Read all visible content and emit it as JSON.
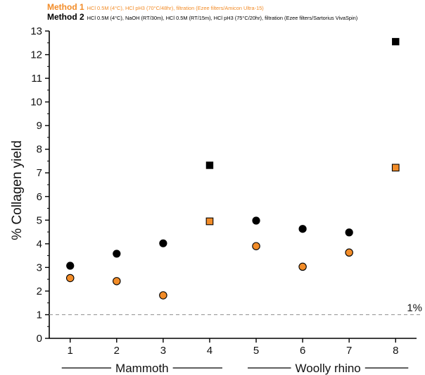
{
  "chart_data": {
    "type": "scatter",
    "ylabel": "% Collagen yield",
    "xlabel": "",
    "x": [
      1,
      2,
      3,
      4,
      5,
      6,
      7,
      8
    ],
    "x_ticks": [
      "1",
      "2",
      "3",
      "4",
      "5",
      "6",
      "7",
      "8"
    ],
    "xlim": [
      0.55,
      8.45
    ],
    "ylim": [
      0,
      13
    ],
    "y_ticks": [
      "0",
      "1",
      "2",
      "3",
      "4",
      "5",
      "6",
      "7",
      "8",
      "9",
      "10",
      "11",
      "12",
      "13"
    ],
    "grid": false,
    "legend_position": "top-left",
    "series": [
      {
        "name": "Method 1",
        "description": "HCl 0.5M (4°C), HCl pH3 (70°C/48hr), filtration (Ezee filters/Amicon Ultra-15)",
        "color": "#f28c28",
        "points": [
          {
            "x": 1,
            "y": 2.55,
            "marker": "circle"
          },
          {
            "x": 2,
            "y": 2.42,
            "marker": "circle"
          },
          {
            "x": 3,
            "y": 1.82,
            "marker": "circle"
          },
          {
            "x": 4,
            "y": 4.95,
            "marker": "square"
          },
          {
            "x": 5,
            "y": 3.9,
            "marker": "circle"
          },
          {
            "x": 6,
            "y": 3.03,
            "marker": "circle"
          },
          {
            "x": 7,
            "y": 3.63,
            "marker": "circle"
          },
          {
            "x": 8,
            "y": 7.22,
            "marker": "square"
          }
        ]
      },
      {
        "name": "Method 2",
        "description": "HCl 0.5M (4°C), NaOH (RT/30m), HCl 0.5M (RT/15m), HCl pH3 (75°C/20hr), filtration (Ezee filters/Sartorius VivaSpin)",
        "color": "#000000",
        "points": [
          {
            "x": 1,
            "y": 3.07,
            "marker": "circle"
          },
          {
            "x": 2,
            "y": 3.58,
            "marker": "circle"
          },
          {
            "x": 3,
            "y": 4.02,
            "marker": "circle"
          },
          {
            "x": 4,
            "y": 7.32,
            "marker": "square"
          },
          {
            "x": 5,
            "y": 4.98,
            "marker": "circle"
          },
          {
            "x": 6,
            "y": 4.63,
            "marker": "circle"
          },
          {
            "x": 7,
            "y": 4.48,
            "marker": "circle"
          },
          {
            "x": 8,
            "y": 12.55,
            "marker": "square"
          }
        ]
      }
    ],
    "reference_line": {
      "y": 1,
      "label": "1%",
      "style": "dashed",
      "color": "#999999"
    },
    "groups": [
      {
        "label": "Mammoth",
        "from": 1,
        "to": 4
      },
      {
        "label": "Woolly rhino",
        "from": 5,
        "to": 8
      }
    ]
  }
}
